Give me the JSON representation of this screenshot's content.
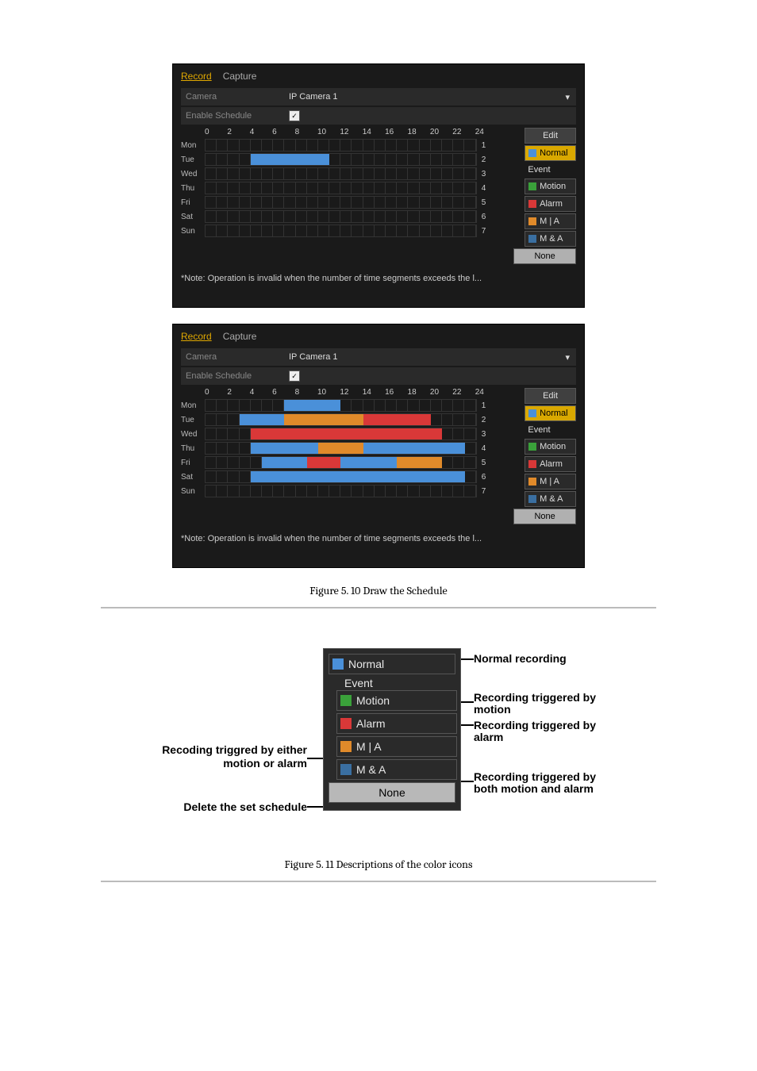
{
  "colors": {
    "normal": "#4a90d9",
    "motion": "#3aa13a",
    "alarm": "#d93838",
    "m_or_a": "#e08a2a",
    "m_and_a": "#3a6fa1",
    "selected_bg": "#d9a800",
    "panel": "#2a2a2a"
  },
  "tabs": {
    "record": "Record",
    "capture": "Capture"
  },
  "form": {
    "camera_label": "Camera",
    "camera_value": "IP Camera 1",
    "enable_label": "Enable Schedule",
    "enable_checked": true
  },
  "hours": [
    "0",
    "2",
    "4",
    "6",
    "8",
    "10",
    "12",
    "14",
    "16",
    "18",
    "20",
    "22",
    "24"
  ],
  "days": [
    "Mon",
    "Tue",
    "Wed",
    "Thu",
    "Fri",
    "Sat",
    "Sun"
  ],
  "right_numbers": [
    "1",
    "2",
    "3",
    "4",
    "5",
    "6",
    "7"
  ],
  "edit_label": "Edit",
  "palette": {
    "normal": "Normal",
    "event_header": "Event",
    "motion": "Motion",
    "alarm": "Alarm",
    "m_or_a": "M | A",
    "m_and_a": "M & A",
    "none": "None"
  },
  "panel1": {
    "selected_palette": "normal",
    "segments": {
      "Tue": [
        {
          "from": 4,
          "to": 11,
          "type": "normal"
        }
      ]
    }
  },
  "panel2": {
    "selected_palette": "normal",
    "segments": {
      "Mon": [
        {
          "from": 7,
          "to": 12,
          "type": "normal"
        }
      ],
      "Tue": [
        {
          "from": 3,
          "to": 7,
          "type": "normal"
        },
        {
          "from": 7,
          "to": 14,
          "type": "m_or_a"
        },
        {
          "from": 14,
          "to": 20,
          "type": "alarm"
        }
      ],
      "Wed": [
        {
          "from": 4,
          "to": 21,
          "type": "alarm"
        }
      ],
      "Thu": [
        {
          "from": 4,
          "to": 10,
          "type": "normal"
        },
        {
          "from": 10,
          "to": 14,
          "type": "m_or_a"
        },
        {
          "from": 14,
          "to": 19,
          "type": "normal"
        },
        {
          "from": 19,
          "to": 23,
          "type": "normal"
        }
      ],
      "Fri": [
        {
          "from": 5,
          "to": 9,
          "type": "normal"
        },
        {
          "from": 9,
          "to": 12,
          "type": "alarm"
        },
        {
          "from": 12,
          "to": 17,
          "type": "normal"
        },
        {
          "from": 17,
          "to": 21,
          "type": "m_or_a"
        }
      ],
      "Sat": [
        {
          "from": 4,
          "to": 19,
          "type": "normal"
        },
        {
          "from": 19,
          "to": 23,
          "type": "normal"
        }
      ]
    }
  },
  "note_text": "*Note: Operation is invalid when the number of time segments exceeds the l...",
  "caption1_num": "Figure 5. 10",
  "caption1_txt": " Draw the Schedule",
  "caption2_num": "Figure 5. 11",
  "caption2_txt": " Descriptions of the color icons",
  "annotations": {
    "left1": "Recoding triggred by either motion or alarm",
    "left2": "Delete the set schedule",
    "r1": "Normal recording",
    "r2": "Recording triggered by motion",
    "r3": "Recording triggered by alarm",
    "r4": "Recording triggered by both motion and alarm"
  }
}
